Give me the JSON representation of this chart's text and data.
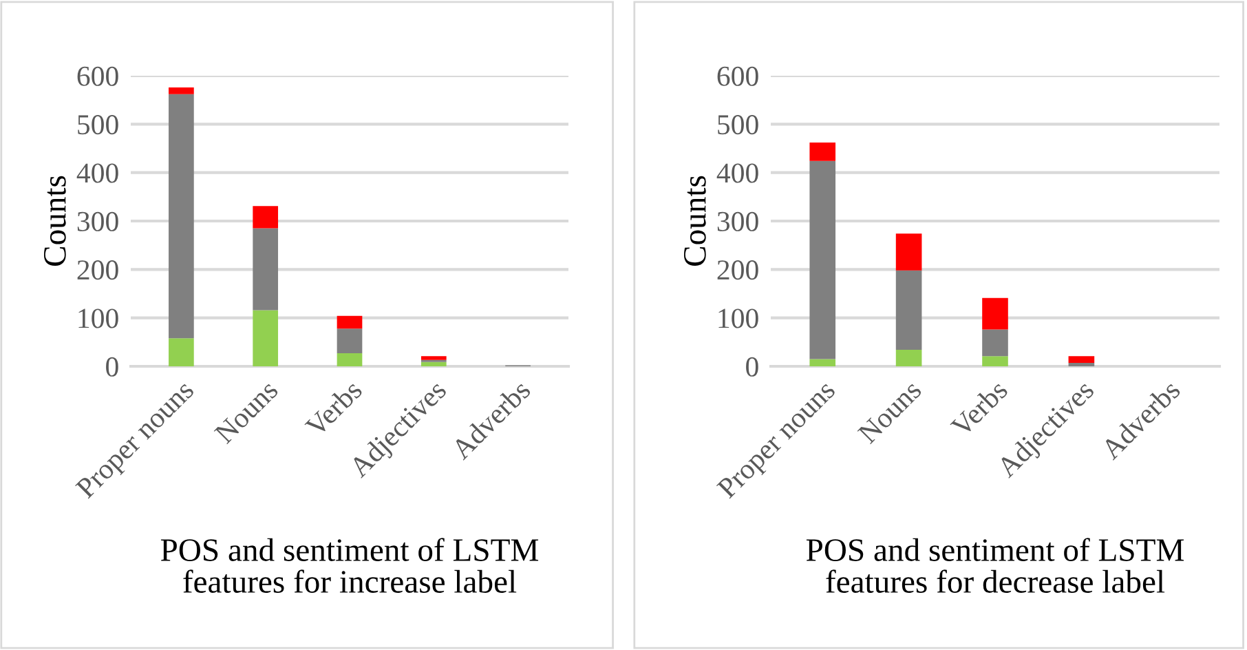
{
  "chart_data": [
    {
      "type": "bar",
      "stacked": true,
      "ylabel": "Counts",
      "xlabel": "POS and sentiment of LSTM\nfeatures for increase label",
      "categories": [
        "Proper nouns",
        "Nouns",
        "Verbs",
        "Adjectives",
        "Adverbs"
      ],
      "series": [
        {
          "color": "#92d050",
          "values": [
            58,
            116,
            27,
            9,
            0
          ]
        },
        {
          "color": "#808080",
          "values": [
            504,
            169,
            51,
            4,
            2
          ]
        },
        {
          "color": "#ff0000",
          "values": [
            14,
            46,
            26,
            8,
            0
          ]
        }
      ],
      "ylim": [
        0,
        600
      ],
      "yticks": [
        0,
        100,
        200,
        300,
        400,
        500,
        600
      ],
      "grid": "y",
      "legend": false
    },
    {
      "type": "bar",
      "stacked": true,
      "ylabel": "Counts",
      "xlabel": "POS and sentiment of LSTM\nfeatures for decrease label",
      "categories": [
        "Proper nouns",
        "Nouns",
        "Verbs",
        "Adjectives",
        "Adverbs"
      ],
      "series": [
        {
          "color": "#92d050",
          "values": [
            15,
            34,
            21,
            0,
            0
          ]
        },
        {
          "color": "#808080",
          "values": [
            409,
            164,
            55,
            7,
            0
          ]
        },
        {
          "color": "#ff0000",
          "values": [
            38,
            76,
            65,
            14,
            0
          ]
        }
      ],
      "ylim": [
        0,
        600
      ],
      "yticks": [
        0,
        100,
        200,
        300,
        400,
        500,
        600
      ],
      "grid": "y",
      "legend": false
    }
  ]
}
